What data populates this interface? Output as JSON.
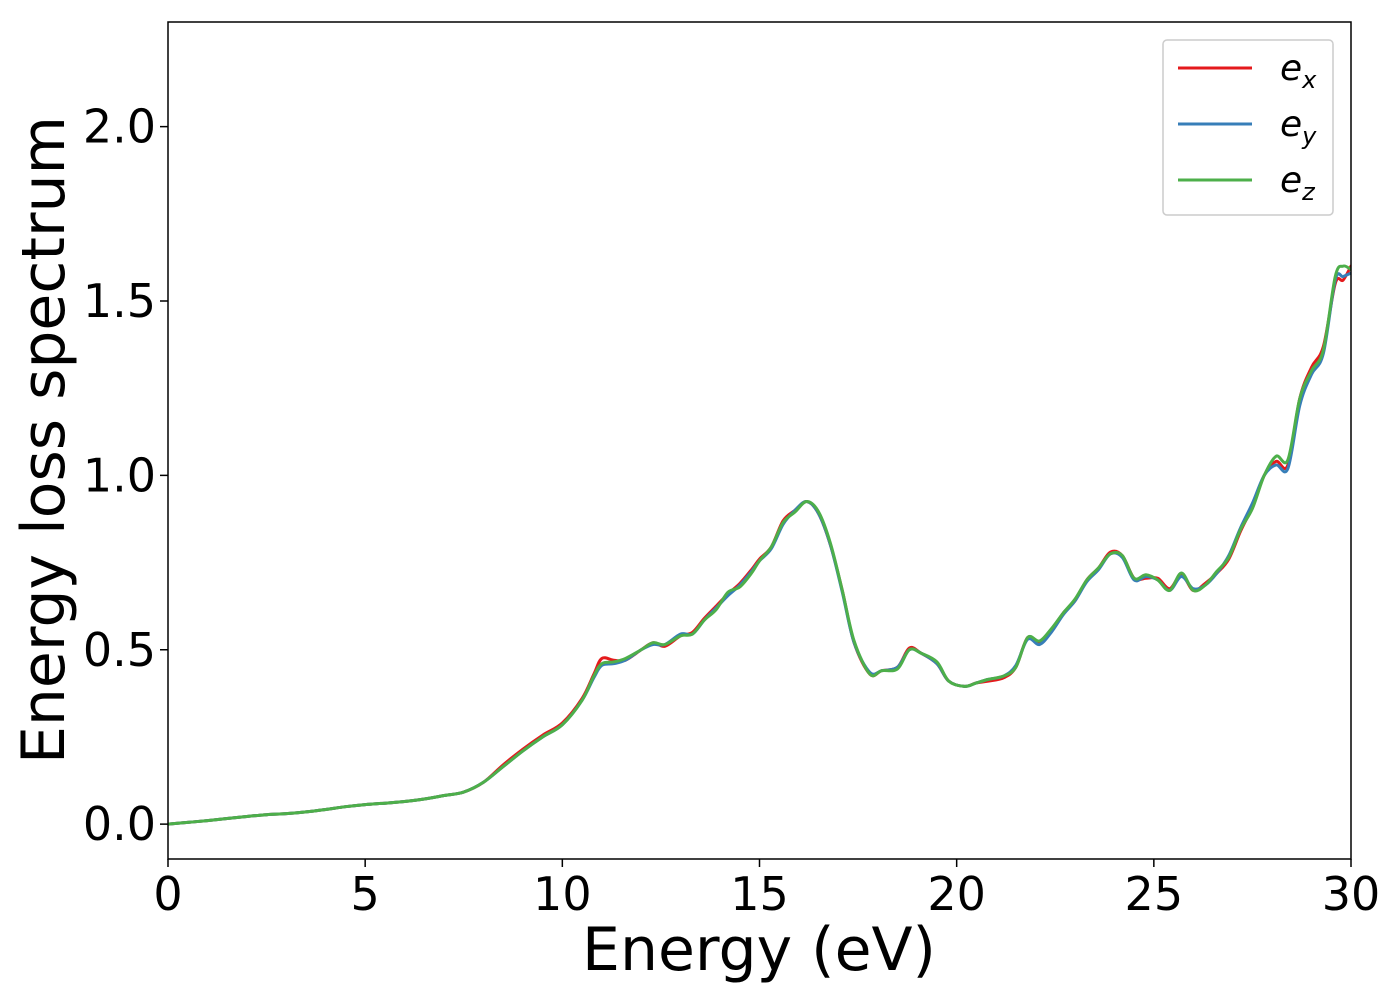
{
  "chart_data": {
    "type": "line",
    "title": "",
    "xlabel": "Energy (eV)",
    "ylabel": "Energy loss spectrum",
    "xlim": [
      0,
      30
    ],
    "ylim": [
      -0.1,
      2.3
    ],
    "xticks": [
      0,
      5,
      10,
      15,
      20,
      25,
      30
    ],
    "xtick_labels": [
      "0",
      "5",
      "10",
      "15",
      "20",
      "25",
      "30"
    ],
    "yticks": [
      0.0,
      0.5,
      1.0,
      1.5,
      2.0
    ],
    "ytick_labels": [
      "0.0",
      "0.5",
      "1.0",
      "1.5",
      "2.0"
    ],
    "grid": false,
    "legend_position": "top-right",
    "x": [
      0,
      0.5,
      1,
      1.5,
      2,
      2.5,
      3,
      3.5,
      4,
      4.5,
      5,
      5.5,
      6,
      6.5,
      7,
      7.5,
      8,
      8.5,
      9,
      9.5,
      10,
      10.5,
      10.8,
      11,
      11.3,
      11.6,
      12,
      12.3,
      12.6,
      13,
      13.3,
      13.6,
      13.9,
      14.2,
      14.5,
      14.8,
      15,
      15.3,
      15.6,
      15.9,
      16.2,
      16.5,
      16.8,
      17.1,
      17.4,
      17.8,
      18.1,
      18.5,
      18.8,
      19.1,
      19.5,
      19.8,
      20.2,
      20.5,
      20.8,
      21.2,
      21.5,
      21.8,
      22.1,
      22.4,
      22.7,
      23,
      23.3,
      23.6,
      23.9,
      24.2,
      24.5,
      24.8,
      25.1,
      25.4,
      25.7,
      26,
      26.3,
      26.6,
      26.9,
      27.2,
      27.5,
      27.8,
      28.1,
      28.4,
      28.7,
      29,
      29.3,
      29.6,
      29.8,
      30
    ],
    "series": [
      {
        "name": "e",
        "subscript": "x",
        "color": "#e41a1c",
        "values": [
          0.0,
          0.005,
          0.01,
          0.016,
          0.022,
          0.027,
          0.03,
          0.035,
          0.042,
          0.05,
          0.056,
          0.06,
          0.065,
          0.072,
          0.082,
          0.092,
          0.12,
          0.17,
          0.215,
          0.255,
          0.29,
          0.36,
          0.43,
          0.475,
          0.47,
          0.47,
          0.5,
          0.52,
          0.51,
          0.54,
          0.55,
          0.59,
          0.625,
          0.66,
          0.69,
          0.73,
          0.76,
          0.795,
          0.87,
          0.9,
          0.925,
          0.89,
          0.8,
          0.67,
          0.52,
          0.43,
          0.44,
          0.45,
          0.505,
          0.49,
          0.46,
          0.41,
          0.395,
          0.405,
          0.41,
          0.42,
          0.45,
          0.535,
          0.52,
          0.555,
          0.605,
          0.64,
          0.7,
          0.735,
          0.78,
          0.77,
          0.705,
          0.705,
          0.705,
          0.675,
          0.715,
          0.67,
          0.69,
          0.72,
          0.76,
          0.84,
          0.91,
          1.0,
          1.04,
          1.03,
          1.22,
          1.31,
          1.37,
          1.55,
          1.56,
          1.6
        ]
      },
      {
        "name": "e",
        "subscript": "y",
        "color": "#377eb8",
        "values": [
          0.0,
          0.005,
          0.01,
          0.016,
          0.022,
          0.027,
          0.03,
          0.035,
          0.042,
          0.05,
          0.056,
          0.06,
          0.065,
          0.072,
          0.082,
          0.092,
          0.12,
          0.165,
          0.21,
          0.25,
          0.285,
          0.355,
          0.42,
          0.455,
          0.46,
          0.47,
          0.5,
          0.515,
          0.515,
          0.545,
          0.545,
          0.585,
          0.62,
          0.655,
          0.685,
          0.725,
          0.755,
          0.79,
          0.86,
          0.9,
          0.925,
          0.89,
          0.8,
          0.665,
          0.52,
          0.435,
          0.44,
          0.45,
          0.5,
          0.49,
          0.46,
          0.41,
          0.395,
          0.405,
          0.415,
          0.425,
          0.455,
          0.53,
          0.515,
          0.55,
          0.6,
          0.64,
          0.695,
          0.73,
          0.775,
          0.765,
          0.7,
          0.71,
          0.7,
          0.67,
          0.71,
          0.675,
          0.685,
          0.72,
          0.77,
          0.85,
          0.92,
          1.0,
          1.03,
          1.02,
          1.2,
          1.29,
          1.35,
          1.56,
          1.57,
          1.58
        ]
      },
      {
        "name": "e",
        "subscript": "z",
        "color": "#4daf4a",
        "values": [
          0.0,
          0.005,
          0.01,
          0.016,
          0.022,
          0.027,
          0.03,
          0.035,
          0.042,
          0.05,
          0.056,
          0.06,
          0.065,
          0.072,
          0.082,
          0.092,
          0.12,
          0.165,
          0.21,
          0.25,
          0.285,
          0.355,
          0.425,
          0.46,
          0.465,
          0.475,
          0.5,
          0.52,
          0.515,
          0.54,
          0.545,
          0.585,
          0.615,
          0.665,
          0.68,
          0.72,
          0.755,
          0.795,
          0.865,
          0.895,
          0.925,
          0.895,
          0.805,
          0.67,
          0.525,
          0.43,
          0.44,
          0.445,
          0.5,
          0.49,
          0.465,
          0.41,
          0.395,
          0.405,
          0.415,
          0.425,
          0.45,
          0.535,
          0.525,
          0.56,
          0.605,
          0.645,
          0.7,
          0.735,
          0.775,
          0.77,
          0.705,
          0.715,
          0.7,
          0.67,
          0.72,
          0.67,
          0.685,
          0.725,
          0.765,
          0.845,
          0.905,
          1.0,
          1.055,
          1.045,
          1.22,
          1.3,
          1.36,
          1.57,
          1.6,
          1.59
        ]
      }
    ]
  }
}
